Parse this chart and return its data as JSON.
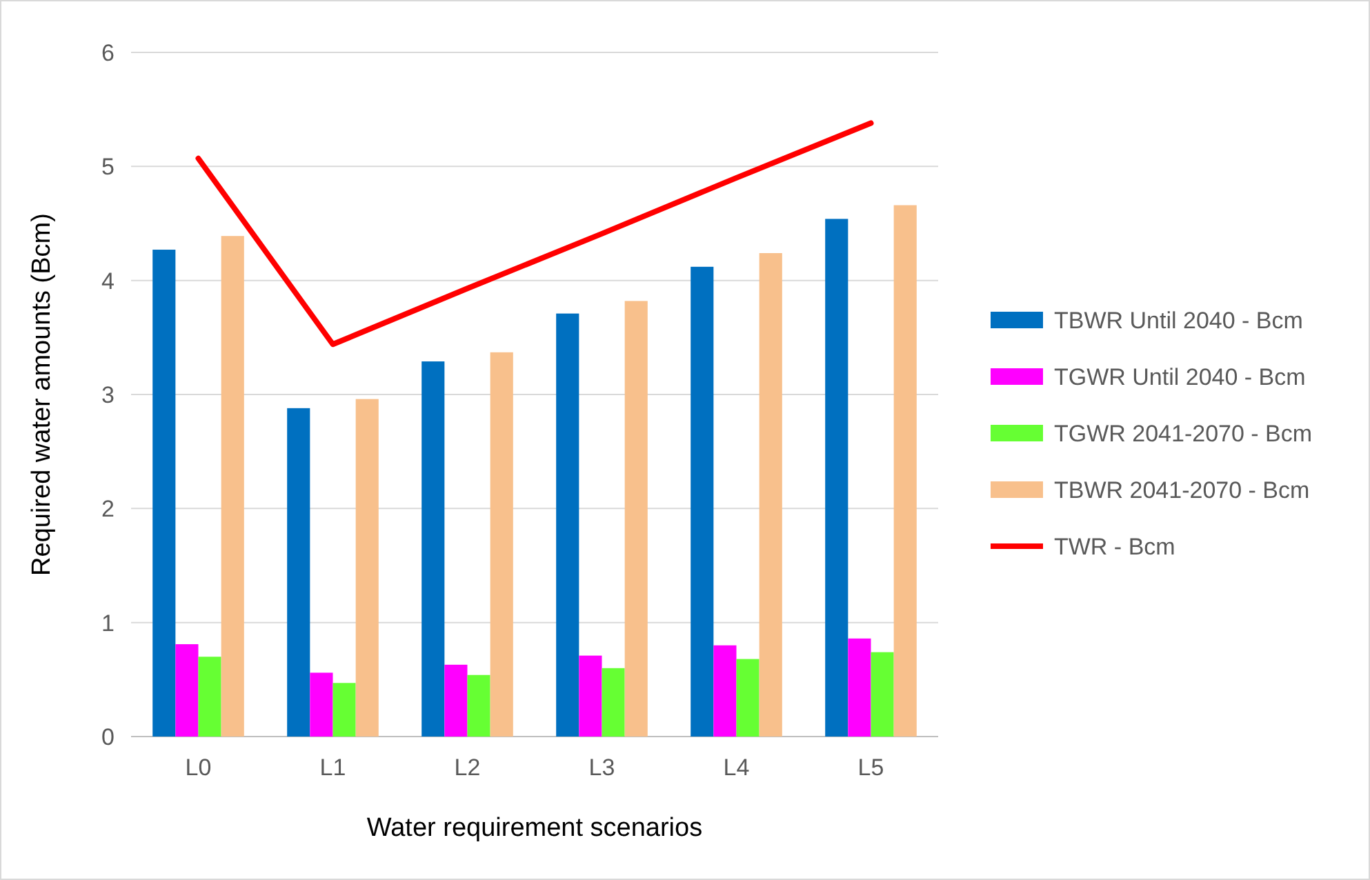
{
  "chart_data": {
    "type": "bar",
    "xlabel": "Water requirement scenarios",
    "ylabel": "Required water amounts (Bcm)",
    "categories": [
      "L0",
      "L1",
      "L2",
      "L3",
      "L4",
      "L5"
    ],
    "series": [
      {
        "name": "TBWR Until 2040 - Bcm",
        "color": "#0070c0",
        "values": [
          4.27,
          2.88,
          3.29,
          3.71,
          4.12,
          4.54
        ]
      },
      {
        "name": "TGWR Until 2040 - Bcm",
        "color": "#ff00ff",
        "values": [
          0.81,
          0.56,
          0.63,
          0.71,
          0.8,
          0.86
        ]
      },
      {
        "name": "TGWR 2041-2070 - Bcm",
        "color": "#66ff33",
        "values": [
          0.7,
          0.47,
          0.54,
          0.6,
          0.68,
          0.74
        ]
      },
      {
        "name": "TBWR 2041-2070 - Bcm",
        "color": "#f8c08c",
        "values": [
          4.39,
          2.96,
          3.37,
          3.82,
          4.24,
          4.66
        ]
      },
      {
        "name": "TWR - Bcm",
        "type": "line",
        "color": "#ff0000",
        "values": [
          5.07,
          3.44,
          3.93,
          4.41,
          4.9,
          5.38
        ]
      }
    ],
    "ylim": [
      0,
      6
    ],
    "yticks": [
      0,
      1,
      2,
      3,
      4,
      5,
      6
    ],
    "grid": "y",
    "legend": "right",
    "marker": "none",
    "line_style": "solid"
  }
}
